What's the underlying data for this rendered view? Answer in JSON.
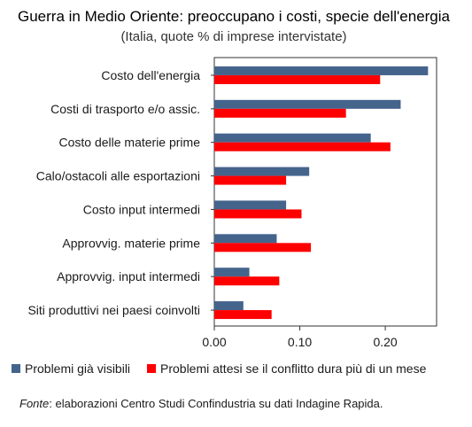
{
  "chart_data": {
    "type": "bar",
    "orientation": "horizontal",
    "title": "Guerra in Medio Oriente: preoccupano i costi, specie dell'energia",
    "subtitle": "(Italia, quote % di imprese intervistate)",
    "categories": [
      "Costo dell'energia",
      "Costi di trasporto e/o assic.",
      "Costo delle materie prime",
      "Calo/ostacoli alle esportazioni",
      "Costo input intermedi",
      "Approvvig. materie prime",
      "Approvvig. input intermedi",
      "Siti produttivi nei paesi coinvolti"
    ],
    "series": [
      {
        "name": "Problemi già visibili",
        "color": "#44648c",
        "values": [
          0.25,
          0.218,
          0.183,
          0.111,
          0.084,
          0.073,
          0.041,
          0.034
        ]
      },
      {
        "name": "Problemi attesi se il conflitto dura più di un mese",
        "color": "#ff0000",
        "values": [
          0.194,
          0.154,
          0.206,
          0.084,
          0.102,
          0.113,
          0.076,
          0.067
        ]
      }
    ],
    "xlim": [
      0,
      0.26
    ],
    "xticks": [
      "0.00",
      "0.10",
      "0.20"
    ],
    "xtick_values": [
      0,
      0.1,
      0.2
    ],
    "legend_placement": "bottom",
    "grid": false
  },
  "source": {
    "label": "Fonte",
    "text": ": elaborazioni Centro Studi Confindustria su dati Indagine Rapida."
  }
}
